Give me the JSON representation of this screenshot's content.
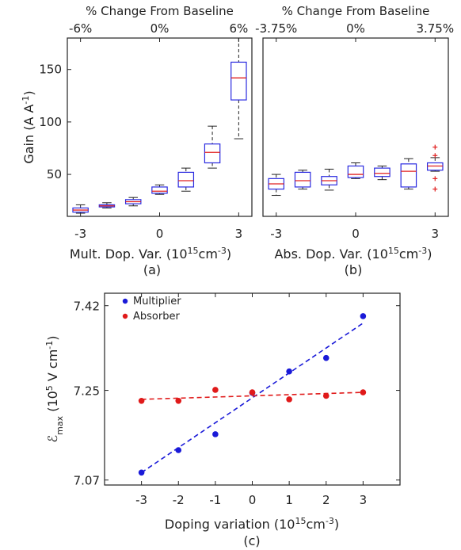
{
  "chart_data": [
    {
      "panel": "(a)",
      "type": "box",
      "top_axis_title": "% Change From Baseline",
      "top_ticks": [
        "-6%",
        "0%",
        "6%"
      ],
      "xlabel": "Mult. Dop. Var. (10",
      "xlabel_sup": "15",
      "xlabel_tail": "cm",
      "xlabel_sup2": "-3",
      "xlabel_end": ")",
      "ylabel": "Gain (A A",
      "ylabel_sup": "-1",
      "ylabel_end": ")",
      "xlim": [
        -3.5,
        3.5
      ],
      "ylim": [
        10,
        180
      ],
      "x_ticks": [
        -3,
        0,
        3
      ],
      "x_tick_labels": [
        "-3",
        "0",
        "3"
      ],
      "y_ticks": [
        50,
        100,
        150
      ],
      "y_tick_labels": [
        "50",
        "100",
        "150"
      ],
      "boxes": [
        {
          "x": -3,
          "min": 13,
          "q1": 14,
          "median": 16,
          "q3": 18,
          "max": 21
        },
        {
          "x": -2,
          "min": 18,
          "q1": 19,
          "median": 20,
          "q3": 21,
          "max": 23
        },
        {
          "x": -1,
          "min": 20,
          "q1": 22,
          "median": 24,
          "q3": 26,
          "max": 28
        },
        {
          "x": 0,
          "min": 31,
          "q1": 32,
          "median": 34,
          "q3": 38,
          "max": 40
        },
        {
          "x": 1,
          "min": 34,
          "q1": 38,
          "median": 44,
          "q3": 52,
          "max": 56
        },
        {
          "x": 2,
          "min": 56,
          "q1": 61,
          "median": 71,
          "q3": 79,
          "max": 96
        },
        {
          "x": 3,
          "min": 84,
          "q1": 121,
          "median": 142,
          "q3": 157,
          "max": 180
        }
      ]
    },
    {
      "panel": "(b)",
      "type": "box",
      "top_axis_title": "% Change From Baseline",
      "top_ticks": [
        "-3.75%",
        "0%",
        "3.75%"
      ],
      "xlabel": "Abs. Dop. Var. (10",
      "xlabel_sup": "15",
      "xlabel_tail": "cm",
      "xlabel_sup2": "-3",
      "xlabel_end": ")",
      "xlim": [
        -3.5,
        3.5
      ],
      "ylim": [
        10,
        180
      ],
      "x_ticks": [
        -3,
        0,
        3
      ],
      "x_tick_labels": [
        "-3",
        "0",
        "3"
      ],
      "boxes": [
        {
          "x": -3,
          "min": 30,
          "q1": 36,
          "median": 41,
          "q3": 46,
          "max": 50
        },
        {
          "x": -2,
          "min": 36,
          "q1": 38,
          "median": 44,
          "q3": 52,
          "max": 54
        },
        {
          "x": -1,
          "min": 35,
          "q1": 40,
          "median": 44,
          "q3": 48,
          "max": 55
        },
        {
          "x": 0,
          "min": 46,
          "q1": 47,
          "median": 50,
          "q3": 58,
          "max": 61
        },
        {
          "x": 1,
          "min": 45,
          "q1": 48,
          "median": 51,
          "q3": 56,
          "max": 58
        },
        {
          "x": 2,
          "min": 36,
          "q1": 38,
          "median": 53,
          "q3": 60,
          "max": 65
        },
        {
          "x": 3,
          "min": 53,
          "q1": 54,
          "median": 58,
          "q3": 61,
          "max": 66
        }
      ],
      "outliers": [
        {
          "x": 3,
          "y": 76
        },
        {
          "x": 3,
          "y": 68
        },
        {
          "x": 3,
          "y": 46
        },
        {
          "x": 3,
          "y": 36
        }
      ]
    },
    {
      "panel": "(c)",
      "type": "scatter",
      "xlabel": "Doping variation (10",
      "xlabel_sup": "15",
      "xlabel_tail": "cm",
      "xlabel_sup2": "-3",
      "xlabel_end": ")",
      "ylabel_symbol": "ℰ",
      "ylabel_sub": "max",
      "ylabel": " (10",
      "ylabel_sup": "5",
      "ylabel_mid": " V cm",
      "ylabel_sup2": "-1",
      "ylabel_end": ")",
      "xlim": [
        -4,
        4
      ],
      "ylim": [
        7.06,
        7.445
      ],
      "x_ticks": [
        -3,
        -2,
        -1,
        0,
        1,
        2,
        3
      ],
      "x_tick_labels": [
        "-3",
        "-2",
        "-1",
        "0",
        "1",
        "2",
        "3"
      ],
      "y_ticks": [
        7.07,
        7.25,
        7.42
      ],
      "y_tick_labels": [
        "7.07",
        "7.25",
        "7.42"
      ],
      "legend_position": "top-left",
      "series": [
        {
          "name": "Multiplier",
          "color": "#1a1ad8",
          "x": [
            -3,
            -2,
            -1,
            0,
            1,
            2,
            3
          ],
          "y": [
            7.085,
            7.13,
            7.162,
            7.245,
            7.288,
            7.315,
            7.399
          ],
          "fit": [
            [
              -3,
              7.085
            ],
            [
              3,
              7.385
            ]
          ]
        },
        {
          "name": "Absorber",
          "color": "#e01a1a",
          "x": [
            -3,
            -2,
            -1,
            0,
            1,
            2,
            3
          ],
          "y": [
            7.229,
            7.229,
            7.251,
            7.246,
            7.232,
            7.239,
            7.246
          ],
          "fit": [
            [
              -3,
              7.232
            ],
            [
              3,
              7.246
            ]
          ]
        }
      ]
    }
  ]
}
